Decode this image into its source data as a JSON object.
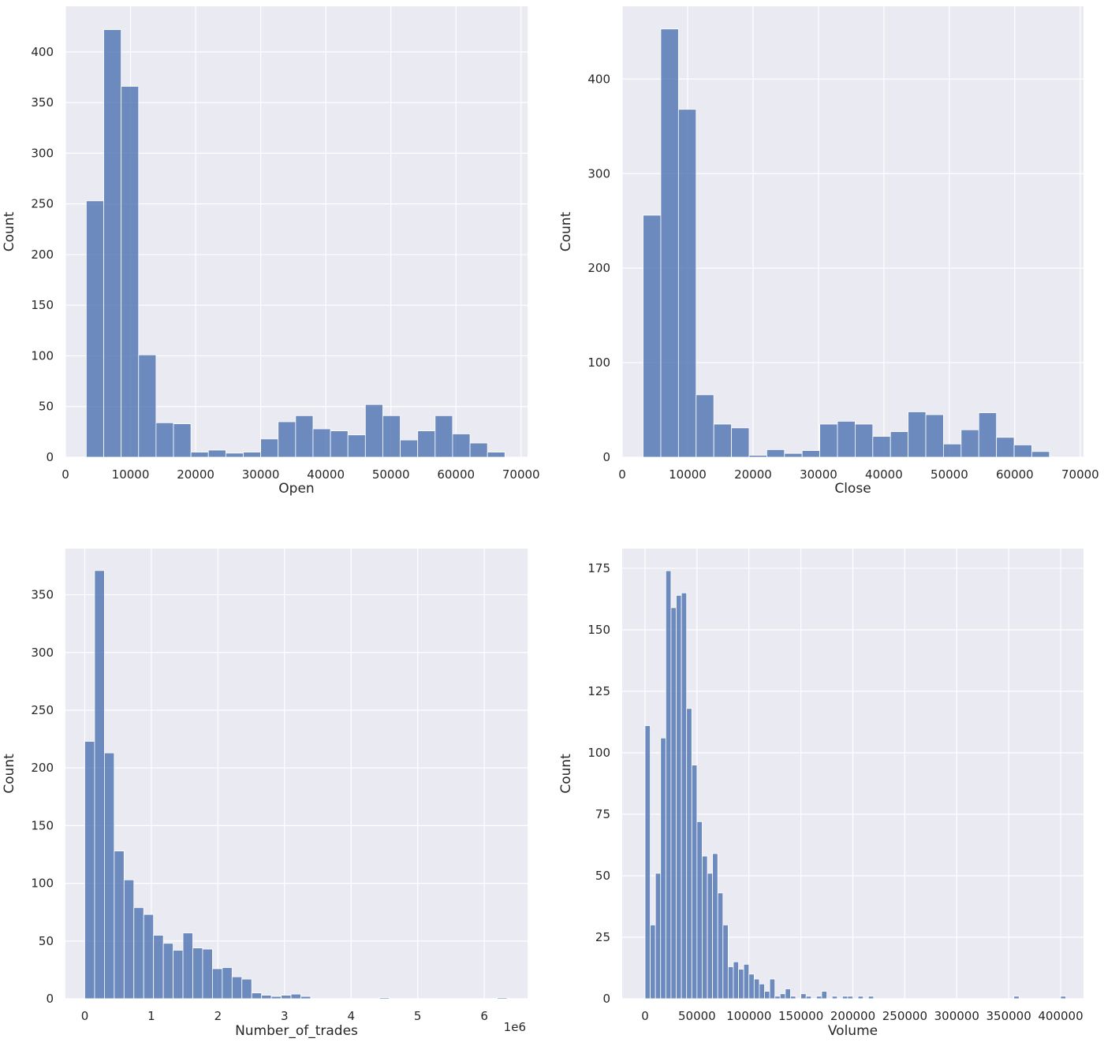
{
  "figure": {
    "background": "#ffffff"
  },
  "style": {
    "axes_bg": "#eaeaf2",
    "grid": "#ffffff",
    "bar_fill": "#4c72b0",
    "bar_opacity": 0.8,
    "bar_edge": "#ffffff"
  },
  "chart_data": [
    {
      "type": "bar",
      "xlabel": "Open",
      "ylabel": "Count",
      "grid": true,
      "xlim": [
        0,
        71000
      ],
      "ylim": [
        0,
        445
      ],
      "xticks": [
        0,
        10000,
        20000,
        30000,
        40000,
        50000,
        60000,
        70000
      ],
      "xtick_labels": [
        "0",
        "10000",
        "20000",
        "30000",
        "40000",
        "50000",
        "60000",
        "70000"
      ],
      "yticks": [
        0,
        50,
        100,
        150,
        200,
        250,
        300,
        350,
        400
      ],
      "ytick_labels": [
        "0",
        "50",
        "100",
        "150",
        "200",
        "250",
        "300",
        "350",
        "400"
      ],
      "bin_start": 3200,
      "bin_width": 2680,
      "counts": [
        253,
        422,
        366,
        101,
        34,
        33,
        5,
        7,
        4,
        5,
        18,
        35,
        41,
        28,
        26,
        22,
        52,
        41,
        17,
        26,
        41,
        23,
        14,
        5
      ]
    },
    {
      "type": "bar",
      "xlabel": "Close",
      "ylabel": "Count",
      "grid": true,
      "xlim": [
        0,
        70500
      ],
      "ylim": [
        0,
        477
      ],
      "xticks": [
        0,
        10000,
        20000,
        30000,
        40000,
        50000,
        60000,
        70000
      ],
      "xtick_labels": [
        "0",
        "10000",
        "20000",
        "30000",
        "40000",
        "50000",
        "60000",
        "70000"
      ],
      "yticks": [
        0,
        100,
        200,
        300,
        400
      ],
      "ytick_labels": [
        "0",
        "100",
        "200",
        "300",
        "400"
      ],
      "bin_start": 3200,
      "bin_width": 2700,
      "counts": [
        256,
        453,
        368,
        66,
        35,
        31,
        2,
        8,
        4,
        7,
        35,
        38,
        35,
        22,
        27,
        48,
        45,
        14,
        29,
        47,
        21,
        13,
        6
      ]
    },
    {
      "type": "bar",
      "xlabel": "Number_of_trades",
      "ylabel": "Count",
      "offset_label": "1e6",
      "grid": true,
      "xlim": [
        -0.29,
        6.65
      ],
      "ylim": [
        0,
        390
      ],
      "xticks": [
        0,
        1,
        2,
        3,
        4,
        5,
        6
      ],
      "xtick_labels": [
        "0",
        "1",
        "2",
        "3",
        "4",
        "5",
        "6"
      ],
      "yticks": [
        0,
        50,
        100,
        150,
        200,
        250,
        300,
        350
      ],
      "ytick_labels": [
        "0",
        "50",
        "100",
        "150",
        "200",
        "250",
        "300",
        "350"
      ],
      "bin_start": 0.0,
      "bin_width": 0.1475,
      "counts": [
        223,
        371,
        213,
        128,
        103,
        79,
        73,
        55,
        48,
        42,
        57,
        44,
        43,
        26,
        27,
        19,
        17,
        5,
        3,
        2,
        3,
        4,
        2,
        0,
        0,
        0,
        0,
        0,
        0,
        0,
        1,
        0,
        0,
        0,
        0,
        0,
        0,
        0,
        0,
        0,
        0,
        0,
        1
      ]
    },
    {
      "type": "bar",
      "xlabel": "Volume",
      "ylabel": "Count",
      "grid": true,
      "xlim": [
        -22000,
        422000
      ],
      "ylim": [
        0,
        183
      ],
      "xticks": [
        0,
        50000,
        100000,
        150000,
        200000,
        250000,
        300000,
        350000,
        400000
      ],
      "xtick_labels": [
        "0",
        "50000",
        "100000",
        "150000",
        "200000",
        "250000",
        "300000",
        "350000",
        "400000"
      ],
      "yticks": [
        0,
        25,
        50,
        75,
        100,
        125,
        150,
        175
      ],
      "ytick_labels": [
        "0",
        "25",
        "50",
        "75",
        "100",
        "125",
        "150",
        "175"
      ],
      "bin_start": 0,
      "bin_width": 5000,
      "counts": [
        111,
        30,
        51,
        106,
        174,
        159,
        164,
        165,
        118,
        95,
        72,
        58,
        51,
        59,
        43,
        30,
        13,
        15,
        12,
        14,
        10,
        8,
        6,
        3,
        8,
        1,
        2,
        4,
        1,
        0,
        2,
        1,
        0,
        1,
        3,
        0,
        1,
        0,
        1,
        1,
        0,
        1,
        0,
        1,
        0,
        0,
        0,
        0,
        0,
        0,
        0,
        0,
        0,
        0,
        0,
        0,
        0,
        0,
        0,
        0,
        0,
        0,
        0,
        0,
        0,
        0,
        0,
        0,
        0,
        0,
        0,
        1,
        0,
        0,
        0,
        0,
        0,
        0,
        0,
        0,
        1
      ]
    }
  ]
}
